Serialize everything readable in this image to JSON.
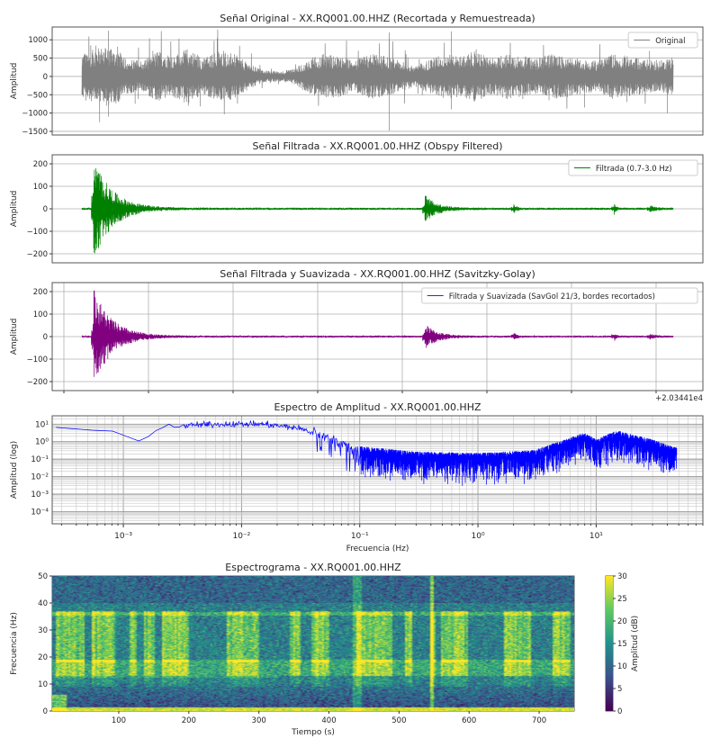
{
  "chart_data": [
    {
      "type": "line",
      "title": "Señal Original - XX.RQ001.00.HHZ (Recortada y Remuestreada)",
      "ylabel": "Amplitud",
      "ylim": [
        -1600,
        1350
      ],
      "yticks": [
        -1500,
        -1000,
        -500,
        0,
        500,
        1000
      ],
      "ytick_labels": [
        "−1500",
        "−1000",
        "−500",
        "0",
        "500",
        "1000"
      ],
      "legend": "Original",
      "legend_position": "top-right",
      "color": "#808080",
      "grid": true,
      "envelope": [
        450,
        550,
        600,
        350,
        300,
        500,
        400,
        550,
        350,
        500,
        450,
        250,
        120,
        100,
        150,
        350,
        450,
        400,
        300,
        450,
        400,
        300,
        200,
        350,
        450,
        400,
        500,
        350,
        450,
        400,
        350,
        450,
        400,
        350,
        300,
        450,
        400,
        350,
        300,
        400
      ],
      "spikes": [
        [
          0.015,
          850
        ],
        [
          0.03,
          -1250
        ],
        [
          0.045,
          1250
        ],
        [
          0.045,
          -1100
        ],
        [
          0.09,
          -750
        ],
        [
          0.12,
          700
        ],
        [
          0.18,
          -800
        ],
        [
          0.2,
          -820
        ],
        [
          0.24,
          700
        ],
        [
          0.52,
          -1480
        ],
        [
          0.52,
          1200
        ],
        [
          0.625,
          1230
        ],
        [
          0.625,
          -900
        ],
        [
          0.79,
          -650
        ],
        [
          0.85,
          -850
        ],
        [
          0.96,
          700
        ],
        [
          0.99,
          -1000
        ]
      ]
    },
    {
      "type": "line",
      "title": "Señal Filtrada - XX.RQ001.00.HHZ (Obspy Filtered)",
      "ylabel": "Amplitud",
      "ylim": [
        -240,
        240
      ],
      "yticks": [
        -200,
        -100,
        0,
        100,
        200
      ],
      "ytick_labels": [
        "−200",
        "−100",
        "0",
        "100",
        "200"
      ],
      "legend": "Filtrada (0.7-3.0 Hz)",
      "legend_position": "top-right",
      "color": "#008000",
      "grid": true,
      "noise_level": 5,
      "events": [
        [
          0.02,
          230,
          0.03
        ],
        [
          0.58,
          60,
          0.02
        ],
        [
          0.73,
          20,
          0.005
        ],
        [
          0.9,
          25,
          0.003
        ],
        [
          0.96,
          12,
          0.01
        ]
      ]
    },
    {
      "type": "line",
      "title": "Señal Filtrada y Suavizada - XX.RQ001.00.HHZ (Savitzky-Golay)",
      "ylabel": "Amplitud",
      "ylim": [
        -240,
        240
      ],
      "yticks": [
        -200,
        -100,
        0,
        100,
        200
      ],
      "ytick_labels": [
        "−200",
        "−100",
        "0",
        "100",
        "200"
      ],
      "legend": "Filtrada y Suavizada (SavGol 21/3, bordes recortados)",
      "legend_position": "top-right",
      "color": "#800080",
      "legend_color": "#3a2ca0",
      "grid": true,
      "offset_label": "+2.03441e4",
      "noise_level": 4,
      "events": [
        [
          0.02,
          215,
          0.03
        ],
        [
          0.58,
          55,
          0.02
        ],
        [
          0.73,
          18,
          0.005
        ],
        [
          0.9,
          22,
          0.003
        ],
        [
          0.96,
          10,
          0.01
        ]
      ]
    },
    {
      "type": "line",
      "title": "Espectro de Amplitud - XX.RQ001.00.HHZ",
      "xlabel": "Frecuencia (Hz)",
      "ylabel": "Amplitud (log)",
      "xscale": "log",
      "yscale": "log",
      "xlim": [
        0.00025,
        80
      ],
      "ylim": [
        2e-05,
        30
      ],
      "xtick_labels": [
        "10⁻³",
        "10⁻²",
        "10⁻¹",
        "10⁰",
        "10¹"
      ],
      "xtick_values": [
        0.001,
        0.01,
        0.1,
        1,
        10
      ],
      "ytick_labels": [
        "10¹",
        "10⁰",
        "10⁻¹",
        "10⁻²",
        "10⁻³",
        "10⁻⁴"
      ],
      "ytick_values": [
        10,
        1,
        0.1,
        0.01,
        0.001,
        0.0001
      ],
      "color": "#0000ff",
      "grid": true,
      "trend": [
        [
          0.00027,
          8
        ],
        [
          0.0005,
          8
        ],
        [
          0.0014,
          1.4
        ],
        [
          0.002,
          6
        ],
        [
          0.004,
          9
        ],
        [
          0.007,
          10
        ],
        [
          0.015,
          10
        ],
        [
          0.03,
          6
        ],
        [
          0.05,
          2
        ],
        [
          0.1,
          0.25
        ],
        [
          0.3,
          0.12
        ],
        [
          1,
          0.1
        ],
        [
          3,
          0.15
        ],
        [
          8,
          1.5
        ],
        [
          10,
          0.6
        ],
        [
          15,
          2
        ],
        [
          30,
          0.6
        ],
        [
          48,
          0.2
        ]
      ]
    },
    {
      "type": "heatmap",
      "title": "Espectrograma - XX.RQ001.00.HHZ",
      "xlabel": "Tiempo (s)",
      "ylabel": "Frecuencia (Hz)",
      "xlim": [
        5,
        750
      ],
      "ylim": [
        0,
        50
      ],
      "xtick_values": [
        100,
        200,
        300,
        400,
        500,
        600,
        700
      ],
      "ytick_values": [
        0,
        10,
        20,
        30,
        40,
        50
      ],
      "colormap": "viridis",
      "colorbar_label": "Amplitud (dB)",
      "colorbar_range": [
        0,
        30
      ],
      "colorbar_ticks": [
        0,
        5,
        10,
        15,
        20,
        25,
        30
      ],
      "bursts_s": [
        [
          10,
          50
        ],
        [
          60,
          95
        ],
        [
          115,
          125
        ],
        [
          135,
          150
        ],
        [
          160,
          200
        ],
        [
          255,
          300
        ],
        [
          345,
          360
        ],
        [
          375,
          400
        ],
        [
          440,
          490
        ],
        [
          510,
          520
        ],
        [
          545,
          552
        ],
        [
          560,
          600
        ],
        [
          650,
          690
        ],
        [
          720,
          745
        ]
      ],
      "bright_bands_hz": [
        [
          14,
          18
        ],
        [
          35.5,
          36.5
        ],
        [
          0,
          1
        ]
      ]
    }
  ]
}
